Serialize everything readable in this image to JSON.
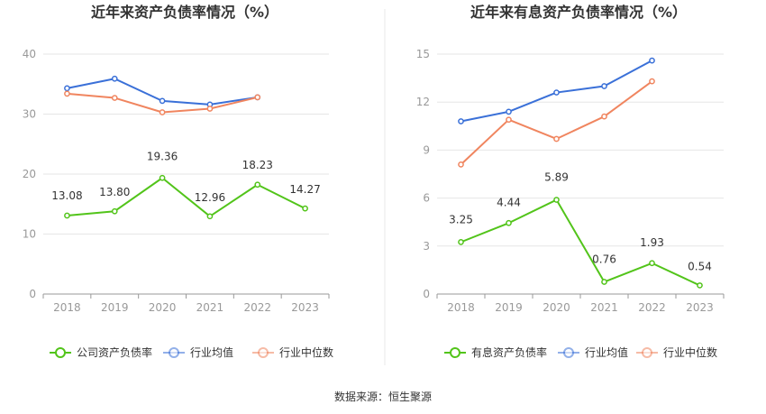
{
  "source_text": "数据来源：恒生聚源",
  "chart_data": [
    {
      "type": "line",
      "title": "近年来资产负债率情况（%）",
      "categories": [
        "2018",
        "2019",
        "2020",
        "2021",
        "2022",
        "2023"
      ],
      "ylim": [
        0,
        40
      ],
      "yticks": [
        0,
        10,
        20,
        30,
        40
      ],
      "grid": true,
      "legend_position": "bottom",
      "series": [
        {
          "name": "公司资产负债率",
          "color": "#52c41a",
          "values": [
            13.08,
            13.8,
            19.36,
            12.96,
            18.23,
            14.27
          ],
          "labels": [
            "13.08",
            "13.80",
            "19.36",
            "12.96",
            "18.23",
            "14.27"
          ]
        },
        {
          "name": "行业均值",
          "color": "#3a70d8",
          "values": [
            34.3,
            35.9,
            32.2,
            31.6,
            32.8,
            null
          ]
        },
        {
          "name": "行业中位数",
          "color": "#f0855f",
          "values": [
            33.4,
            32.7,
            30.3,
            30.9,
            32.8,
            null
          ]
        }
      ]
    },
    {
      "type": "line",
      "title": "近年来有息资产负债率情况（%）",
      "categories": [
        "2018",
        "2019",
        "2020",
        "2021",
        "2022",
        "2023"
      ],
      "ylim": [
        0,
        15
      ],
      "yticks": [
        0,
        3,
        6,
        9,
        12,
        15
      ],
      "grid": true,
      "legend_position": "bottom",
      "series": [
        {
          "name": "有息资产负债率",
          "color": "#52c41a",
          "values": [
            3.25,
            4.44,
            5.89,
            0.76,
            1.93,
            0.54
          ],
          "labels": [
            "3.25",
            "4.44",
            "5.89",
            "0.76",
            "1.93",
            "0.54"
          ]
        },
        {
          "name": "行业均值",
          "color": "#3a70d8",
          "values": [
            10.8,
            11.4,
            12.6,
            13.0,
            14.6,
            null
          ]
        },
        {
          "name": "行业中位数",
          "color": "#f0855f",
          "values": [
            8.1,
            10.9,
            9.7,
            11.1,
            13.3,
            null
          ]
        }
      ]
    }
  ]
}
